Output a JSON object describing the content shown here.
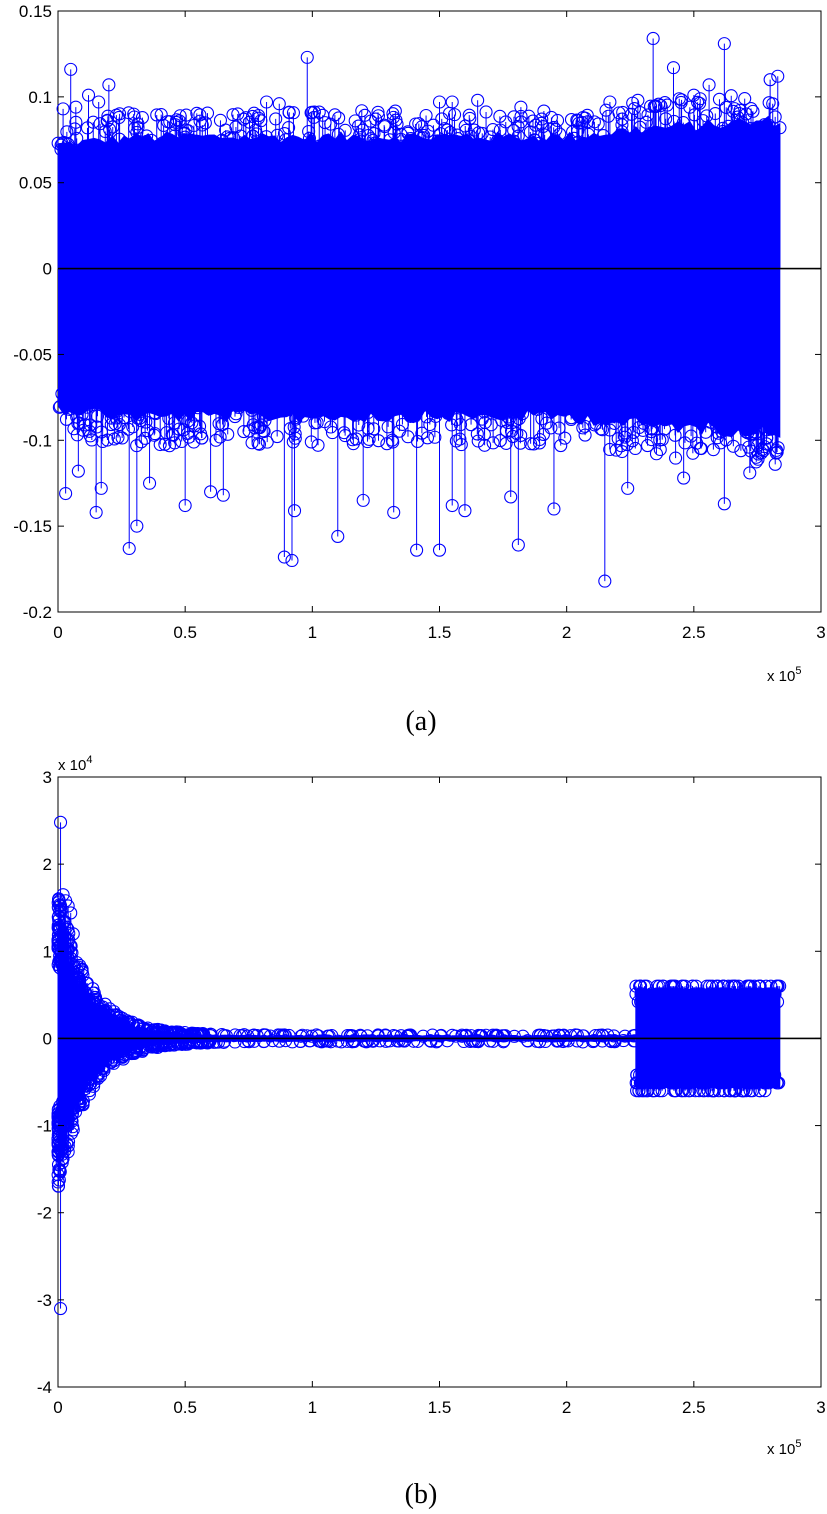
{
  "chart_data": [
    {
      "type": "stem",
      "panel_label": "(a)",
      "x_multiplier": {
        "prefix": "x 10",
        "exponent": "5"
      },
      "xlim": [
        0,
        3
      ],
      "ylim": [
        -0.2,
        0.15
      ],
      "x_ticks": [
        0,
        0.5,
        1,
        1.5,
        2,
        2.5,
        3
      ],
      "x_tick_labels": [
        "0",
        "0.5",
        "1",
        "1.5",
        "2",
        "2.5",
        "3"
      ],
      "y_ticks": [
        -0.2,
        -0.15,
        -0.1,
        -0.05,
        0,
        0.05,
        0.1,
        0.15
      ],
      "y_tick_labels": [
        "-0.2",
        "-0.15",
        "-0.1",
        "-0.05",
        "0",
        "0.05",
        "0.1",
        "0.15"
      ],
      "series_color": "#0000ff",
      "marker": "circle",
      "band": [
        [
          0,
          -0.085,
          0.075
        ],
        [
          0.3,
          -0.09,
          0.08
        ],
        [
          1.0,
          -0.09,
          0.08
        ],
        [
          2.0,
          -0.09,
          0.08
        ],
        [
          2.3,
          -0.095,
          0.085
        ],
        [
          2.84,
          -0.1,
          0.09
        ]
      ],
      "outliers": [
        [
          0.02,
          0.093
        ],
        [
          0.05,
          0.116
        ],
        [
          0.07,
          0.094
        ],
        [
          0.12,
          0.101
        ],
        [
          0.16,
          0.097
        ],
        [
          0.2,
          0.107
        ],
        [
          0.24,
          0.088
        ],
        [
          0.48,
          0.089
        ],
        [
          0.73,
          0.087
        ],
        [
          0.82,
          0.097
        ],
        [
          0.87,
          0.096
        ],
        [
          0.98,
          0.123
        ],
        [
          1.05,
          0.085
        ],
        [
          1.26,
          0.089
        ],
        [
          1.5,
          0.097
        ],
        [
          1.55,
          0.097
        ],
        [
          1.65,
          0.098
        ],
        [
          1.82,
          0.094
        ],
        [
          1.94,
          0.088
        ],
        [
          2.17,
          0.097
        ],
        [
          2.28,
          0.098
        ],
        [
          2.34,
          0.134
        ],
        [
          2.42,
          0.117
        ],
        [
          2.5,
          0.101
        ],
        [
          2.56,
          0.107
        ],
        [
          2.62,
          0.131
        ],
        [
          2.7,
          0.099
        ],
        [
          2.8,
          0.11
        ],
        [
          2.83,
          0.112
        ],
        [
          0.03,
          -0.131
        ],
        [
          0.08,
          -0.118
        ],
        [
          0.15,
          -0.142
        ],
        [
          0.17,
          -0.128
        ],
        [
          0.28,
          -0.163
        ],
        [
          0.31,
          -0.15
        ],
        [
          0.36,
          -0.125
        ],
        [
          0.5,
          -0.138
        ],
        [
          0.6,
          -0.13
        ],
        [
          0.65,
          -0.132
        ],
        [
          0.89,
          -0.168
        ],
        [
          0.92,
          -0.17
        ],
        [
          0.93,
          -0.141
        ],
        [
          1.1,
          -0.156
        ],
        [
          1.2,
          -0.135
        ],
        [
          1.32,
          -0.142
        ],
        [
          1.41,
          -0.164
        ],
        [
          1.5,
          -0.164
        ],
        [
          1.55,
          -0.138
        ],
        [
          1.6,
          -0.141
        ],
        [
          1.78,
          -0.133
        ],
        [
          1.81,
          -0.161
        ],
        [
          1.95,
          -0.14
        ],
        [
          2.15,
          -0.182
        ],
        [
          2.24,
          -0.128
        ],
        [
          2.46,
          -0.122
        ],
        [
          2.62,
          -0.137
        ],
        [
          2.72,
          -0.119
        ],
        [
          2.82,
          -0.114
        ]
      ]
    },
    {
      "type": "stem",
      "panel_label": "(b)",
      "x_multiplier": {
        "prefix": "x 10",
        "exponent": "5"
      },
      "y_multiplier": {
        "prefix": "x 10",
        "exponent": "4"
      },
      "xlim": [
        0,
        3
      ],
      "ylim": [
        -4,
        3
      ],
      "x_ticks": [
        0,
        0.5,
        1,
        1.5,
        2,
        2.5,
        3
      ],
      "x_tick_labels": [
        "0",
        "0.5",
        "1",
        "1.5",
        "2",
        "2.5",
        "3"
      ],
      "y_ticks": [
        -4,
        -3,
        -2,
        -1,
        0,
        1,
        2,
        3
      ],
      "y_tick_labels": [
        "-4",
        "-3",
        "-2",
        "-1",
        "0",
        "1",
        "2",
        "3"
      ],
      "series_color": "#0000ff",
      "marker": "circle",
      "decay": {
        "amplitude": 1.6,
        "tau": 0.12,
        "floor": 0.04,
        "end": 2.27
      },
      "block": {
        "start": 2.27,
        "end": 2.84,
        "amplitude": 0.6
      },
      "outliers": [
        [
          0.01,
          2.48
        ],
        [
          0.01,
          -3.1
        ],
        [
          0.02,
          1.65
        ],
        [
          0.03,
          1.58
        ],
        [
          0.04,
          1.52
        ],
        [
          0.05,
          1.44
        ],
        [
          0.06,
          1.2
        ],
        [
          0.08,
          0.82
        ],
        [
          0.14,
          0.42
        ],
        [
          0.02,
          -1.38
        ],
        [
          0.04,
          -1.3
        ],
        [
          0.06,
          -1.05
        ],
        [
          0.1,
          -0.72
        ],
        [
          0.14,
          -0.55
        ]
      ]
    }
  ],
  "captions": [
    "(a)",
    "(b)"
  ]
}
